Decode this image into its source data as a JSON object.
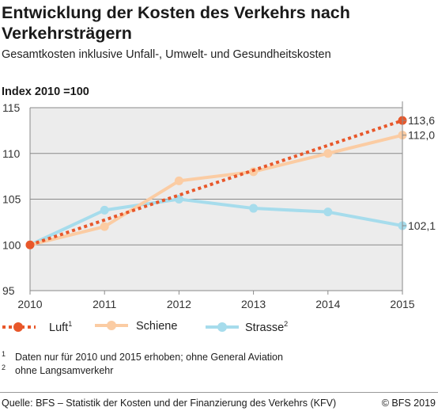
{
  "header": {
    "title": "Entwicklung der Kosten des Verkehrs nach Verkehrsträgern",
    "subtitle": "Gesamtkosten inklusive Unfall-, Umwelt- und Gesundheitskosten"
  },
  "chart_data": {
    "type": "line",
    "ylabel": "Index 2010 =100",
    "x": [
      2010,
      2011,
      2012,
      2013,
      2014,
      2015
    ],
    "ylim": [
      95,
      115
    ],
    "yticks": [
      95,
      100,
      105,
      110,
      115
    ],
    "grid": true,
    "series": [
      {
        "name": "Luft",
        "footnote": "1",
        "style": "dotted",
        "color": "#e8572a",
        "x": [
          2010,
          2015
        ],
        "values": [
          100,
          113.6
        ],
        "end_label": "113,6"
      },
      {
        "name": "Schiene",
        "style": "solid",
        "color": "#fbcca3",
        "x": [
          2010,
          2011,
          2012,
          2013,
          2014,
          2015
        ],
        "values": [
          100,
          102,
          107,
          108,
          110,
          112
        ],
        "end_label": "112,0"
      },
      {
        "name": "Strasse",
        "footnote": "2",
        "style": "solid",
        "color": "#a6dcec",
        "x": [
          2010,
          2011,
          2012,
          2013,
          2014,
          2015
        ],
        "values": [
          100,
          103.8,
          105,
          104,
          103.6,
          102.1
        ],
        "end_label": "102,1"
      }
    ],
    "legend": "bottom"
  },
  "footnotes": [
    {
      "mark": "1",
      "text": "Daten nur für 2010 und 2015 erhoben; ohne General Aviation"
    },
    {
      "mark": "2",
      "text": "ohne Langsamverkehr"
    }
  ],
  "source": "Quelle: BFS – Statistik der Kosten und der Finanzierung des Verkehrs (KFV)",
  "copyright": "© BFS 2019"
}
